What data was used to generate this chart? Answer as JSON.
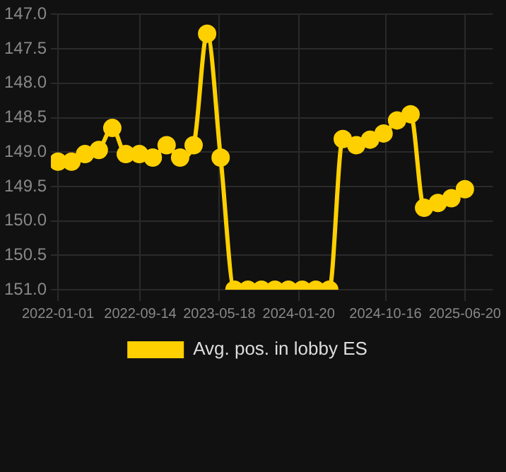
{
  "chart_data": {
    "type": "line",
    "x": [
      "2022-01-01",
      "2022-02-12",
      "2022-03-26",
      "2022-05-08",
      "2022-06-19",
      "2022-07-31",
      "2022-09-11",
      "2022-10-23",
      "2022-12-05",
      "2023-01-16",
      "2023-02-27",
      "2023-04-10",
      "2023-05-22",
      "2023-07-04",
      "2023-08-15",
      "2023-09-26",
      "2023-11-07",
      "2023-12-19",
      "2024-01-31",
      "2024-03-13",
      "2024-04-24",
      "2024-06-05",
      "2024-07-17",
      "2024-08-29",
      "2024-10-10",
      "2024-11-21",
      "2025-01-02",
      "2025-02-13",
      "2025-03-28",
      "2025-05-09",
      "2025-06-20"
    ],
    "series": [
      {
        "name": "Avg. pos. in lobby ES",
        "color": "#ffd000",
        "values": [
          149.14,
          149.14,
          149.03,
          148.97,
          148.65,
          149.03,
          149.03,
          149.08,
          148.9,
          149.08,
          148.9,
          147.28,
          149.08,
          151,
          151,
          151,
          151,
          151,
          151,
          151,
          151,
          148.81,
          148.9,
          148.82,
          148.73,
          148.54,
          148.45,
          149.81,
          149.74,
          149.67,
          149.54
        ]
      }
    ],
    "xlim": [
      "2021-12-10",
      "2025-09-15"
    ],
    "xticks": [
      "2022-01-01",
      "2022-09-14",
      "2023-05-18",
      "2024-01-20",
      "2024-10-16",
      "2025-06-20"
    ],
    "ylim": [
      151,
      147
    ],
    "yticks": [
      {
        "value": 147,
        "label": "147.0"
      },
      147.5,
      {
        "value": 148,
        "label": "148.0"
      },
      148.5,
      {
        "value": 149,
        "label": "149.0"
      },
      149.5,
      {
        "value": 150,
        "label": "150.0"
      },
      150.5,
      {
        "value": 151,
        "label": "151.0"
      }
    ],
    "grid": true,
    "legend": "bottom",
    "marker": "circle",
    "line_style": "solid"
  }
}
